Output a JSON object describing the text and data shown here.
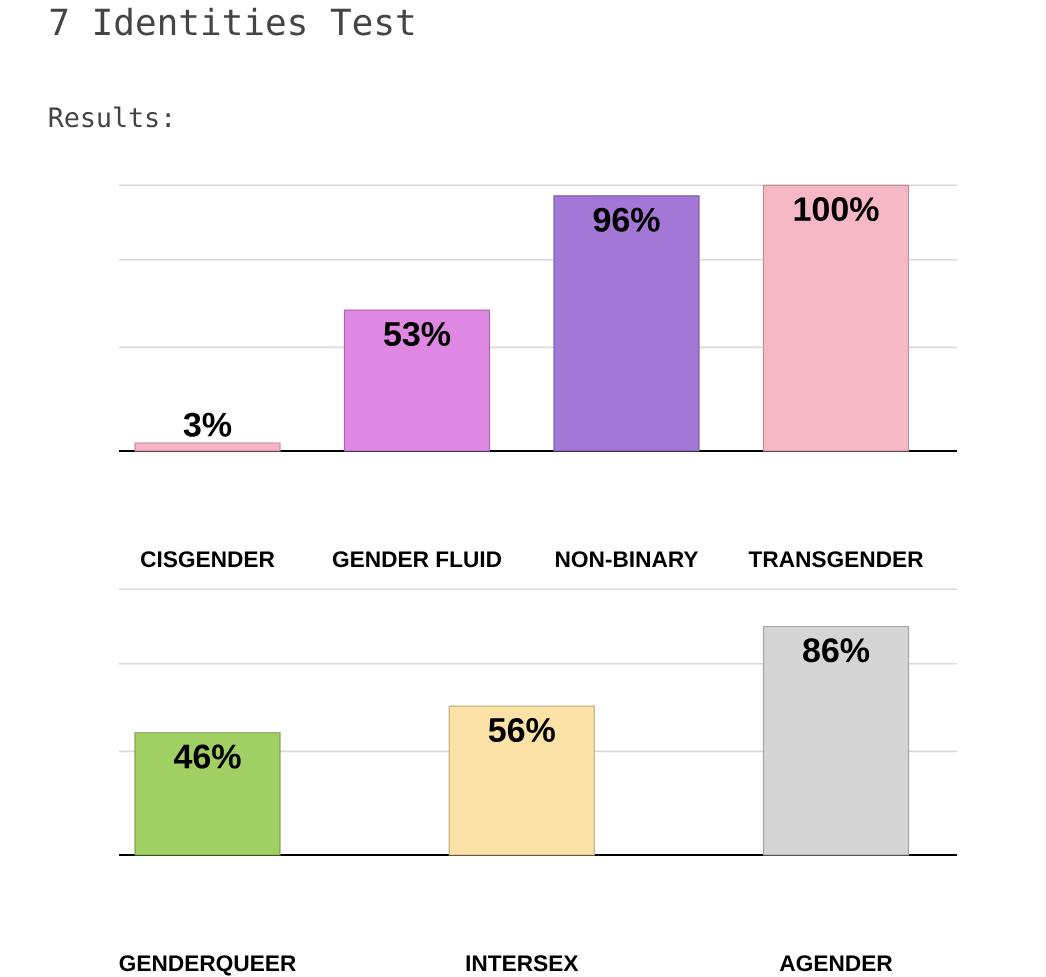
{
  "chart_data": [
    {
      "type": "bar",
      "title": "7 Identities Test",
      "subtitle": "Results:",
      "categories": [
        "CISGENDER",
        "GENDER FLUID",
        "NON-BINARY",
        "TRANSGENDER"
      ],
      "values": [
        3,
        53,
        96,
        100
      ],
      "value_labels": [
        "3%",
        "53%",
        "96%",
        "100%"
      ],
      "colors": [
        "#f8b4c4",
        "#de88e4",
        "#a377d6",
        "#f6b8c4"
      ],
      "ylim": [
        0,
        100
      ],
      "yticks": [
        {
          "value": 39,
          "label": null
        },
        {
          "value": 72,
          "label": null
        },
        {
          "value": 100,
          "label": null
        }
      ],
      "grid": "y",
      "tick_labels": "x"
    },
    {
      "type": "bar",
      "categories": [
        "GENDERQUEER",
        "INTERSEX",
        "AGENDER"
      ],
      "values": [
        46,
        56,
        86
      ],
      "value_labels": [
        "46%",
        "56%",
        "86%"
      ],
      "colors": [
        "#a0d064",
        "#fde2a8",
        "#d5d5d5"
      ],
      "ylim": [
        0,
        100
      ],
      "yticks": [
        {
          "value": 39,
          "label": null
        },
        {
          "value": 72,
          "label": null
        },
        {
          "value": 100,
          "label": null
        }
      ],
      "grid": "y",
      "tick_labels": "x"
    }
  ]
}
